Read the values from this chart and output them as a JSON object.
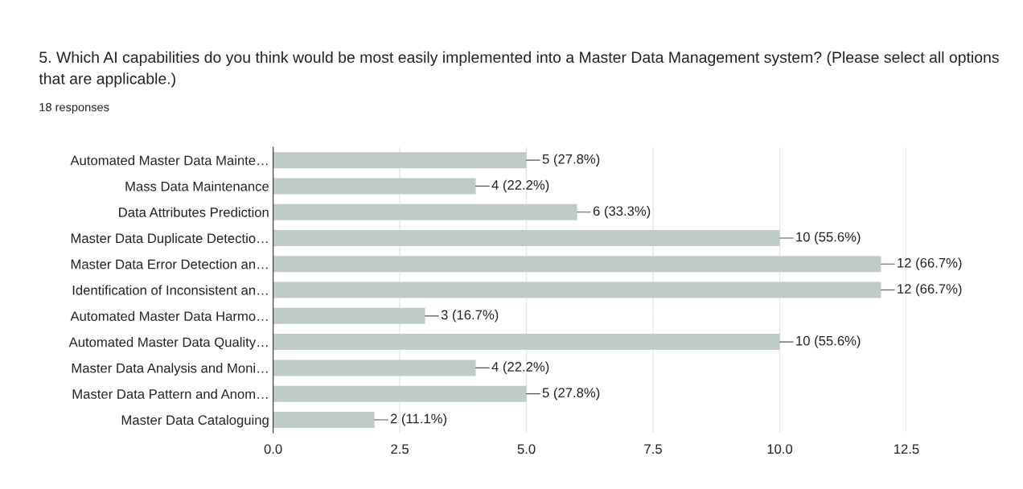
{
  "chart_data": {
    "type": "bar",
    "orientation": "horizontal",
    "title": "5. Which AI capabilities do you think would be most easily implemented into a Master Data Management system? (Please select all options that are applicable.)",
    "subtitle": "18 responses",
    "categories": [
      "Automated Master Data Mainte…",
      "Mass Data Maintenance",
      "Data Attributes Prediction",
      "Master Data Duplicate Detectio…",
      "Master Data Error Detection an…",
      "Identification of Inconsistent an…",
      "Automated Master Data Harmo…",
      "Automated Master Data Quality…",
      "Master Data Analysis and Moni…",
      "Master Data Pattern and Anom…",
      "Master Data Cataloguing"
    ],
    "values": [
      5,
      4,
      6,
      10,
      12,
      12,
      3,
      10,
      4,
      5,
      2
    ],
    "value_labels": [
      "5 (27.8%)",
      "4 (22.2%)",
      "6 (33.3%)",
      "10 (55.6%)",
      "12 (66.7%)",
      "12 (66.7%)",
      "3 (16.7%)",
      "10 (55.6%)",
      "4 (22.2%)",
      "5 (27.8%)",
      "2 (11.1%)"
    ],
    "color": "#bfcbc9",
    "xlim": [
      0,
      12.5
    ],
    "xticks": [
      {
        "value": 0,
        "label": "0.0"
      },
      {
        "value": 2.5,
        "label": "2.5"
      },
      {
        "value": 5,
        "label": "5.0"
      },
      {
        "value": 7.5,
        "label": "7.5"
      },
      {
        "value": 10,
        "label": "10.0"
      },
      {
        "value": 12.5,
        "label": "12.5"
      }
    ],
    "grid": "x",
    "legend": false
  }
}
